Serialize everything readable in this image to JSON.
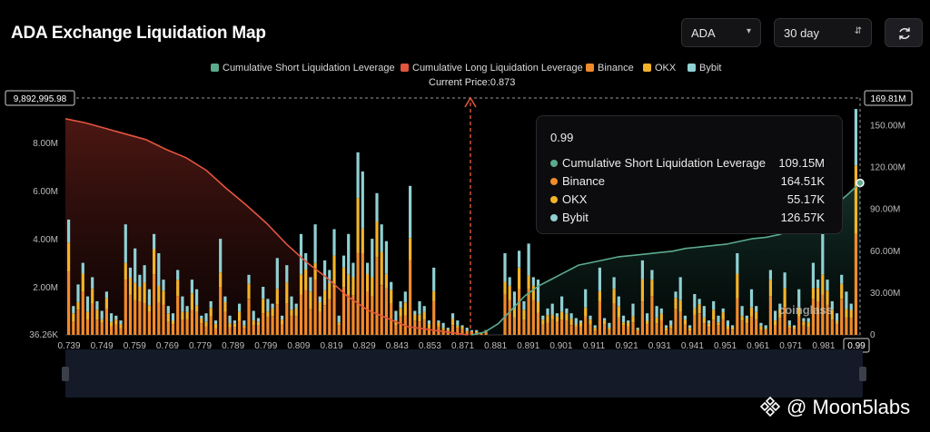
{
  "header": {
    "title": "ADA Exchange Liquidation Map",
    "symbol_select": "ADA",
    "period_select": "30 day",
    "refresh_icon": "refresh-icon"
  },
  "legend": [
    {
      "label": "Cumulative Short Liquidation Leverage",
      "color": "#5bab8e"
    },
    {
      "label": "Cumulative Long Liquidation Leverage",
      "color": "#e2553e"
    },
    {
      "label": "Binance",
      "color": "#f08a2b"
    },
    {
      "label": "OKX",
      "color": "#f2b32a"
    },
    {
      "label": "Bybit",
      "color": "#8fd0d3"
    }
  ],
  "current_price_label": "Current Price:0.873",
  "tooltip": {
    "title": "0.99",
    "rows": [
      {
        "label": "Cumulative Short Liquidation Leverage",
        "value": "109.15M",
        "color": "#5bab8e"
      },
      {
        "label": "Binance",
        "value": "164.51K",
        "color": "#f08a2b"
      },
      {
        "label": "OKX",
        "value": "55.17K",
        "color": "#f2b32a"
      },
      {
        "label": "Bybit",
        "value": "126.57K",
        "color": "#8fd0d3"
      }
    ]
  },
  "watermark": "@ Moon5labs",
  "brand": "coinglass",
  "chart_data": {
    "type": "bar",
    "x_ticks": [
      "0.739",
      "0.749",
      "0.759",
      "0.769",
      "0.779",
      "0.789",
      "0.799",
      "0.809",
      "0.819",
      "0.829",
      "0.843",
      "0.853",
      "0.871",
      "0.881",
      "0.891",
      "0.901",
      "0.911",
      "0.921",
      "0.931",
      "0.941",
      "0.951",
      "0.961",
      "0.971",
      "0.981",
      "0.99"
    ],
    "left_axis": {
      "ticks": [
        "36.26K",
        "2.00M",
        "4.00M",
        "6.00M",
        "8.00M"
      ],
      "min": 36260,
      "max": 9892995.98,
      "max_label": "9,892,995.98"
    },
    "right_axis": {
      "ticks": [
        "0",
        "30.00M",
        "60.00M",
        "90.00M",
        "120.00M",
        "150.00M"
      ],
      "min": 0,
      "max": 169810000,
      "max_label": "169.81M"
    },
    "current_price": 0.873,
    "bar_series": [
      {
        "name": "Binance",
        "color": "#f08a2b"
      },
      {
        "name": "OKX",
        "color": "#f2b32a"
      },
      {
        "name": "Bybit",
        "color": "#8fd0d3"
      }
    ],
    "bars_total_M": [
      4.8,
      1.2,
      2.1,
      3.0,
      1.6,
      2.4,
      1.4,
      1.0,
      1.8,
      0.9,
      0.8,
      0.6,
      4.6,
      2.8,
      3.6,
      2.5,
      2.9,
      1.9,
      4.2,
      3.4,
      2.3,
      1.2,
      0.9,
      2.7,
      1.6,
      1.2,
      2.3,
      1.9,
      0.8,
      0.9,
      1.4,
      0.6,
      4.0,
      1.6,
      0.8,
      0.6,
      1.3,
      0.6,
      2.5,
      1.0,
      0.7,
      2.0,
      1.5,
      1.3,
      3.2,
      0.8,
      2.9,
      1.6,
      1.3,
      4.2,
      3.4,
      2.4,
      4.6,
      1.6,
      3.1,
      2.7,
      4.4,
      0.8,
      3.3,
      4.2,
      3.0,
      7.6,
      6.8,
      3.0,
      4.0,
      5.9,
      4.6,
      3.9,
      2.2,
      1.0,
      1.4,
      1.8,
      6.2,
      1.0,
      1.4,
      1.2,
      0.6,
      2.8,
      0.6,
      0.5,
      0.3,
      0.9,
      0.6,
      0.4,
      0.3,
      0.2,
      0.2,
      0.1,
      0.2,
      0.0,
      0.0,
      0.0,
      3.4,
      2.4,
      1.8,
      3.5,
      1.4,
      3.8,
      2.4,
      2.3,
      0.8,
      1.1,
      1.3,
      0.9,
      1.6,
      1.1,
      0.9,
      0.7,
      0.6,
      1.9,
      0.8,
      0.4,
      2.8,
      0.7,
      0.5,
      2.4,
      1.6,
      0.8,
      0.6,
      1.3,
      0.3,
      3.1,
      0.9,
      2.7,
      1.2,
      1.1,
      0.4,
      0.6,
      1.8,
      2.4,
      0.8,
      0.4,
      1.7,
      1.5,
      1.2,
      0.6,
      1.4,
      0.8,
      1.1,
      0.6,
      0.4,
      3.4,
      1.2,
      0.8,
      1.9,
      1.2,
      0.5,
      0.4,
      2.7,
      1.0,
      1.3,
      2.6,
      0.6,
      0.4,
      1.9,
      0.7,
      0.7,
      3.0,
      2.3,
      4.2,
      2.3,
      1.4,
      0.9,
      2.5,
      1.8,
      1.3,
      9.4
    ],
    "cum_long_M": [
      155,
      152,
      148,
      144,
      140,
      133,
      127,
      118,
      105,
      93,
      80,
      65,
      52,
      41,
      28,
      18,
      12,
      6,
      4,
      2,
      0
    ],
    "cum_short_M": [
      0,
      2,
      8,
      18,
      28,
      35,
      40,
      45,
      50,
      52,
      54,
      56,
      57,
      58,
      59,
      60,
      62,
      63,
      64,
      65,
      67,
      69,
      70,
      72,
      76,
      80,
      86,
      92,
      100,
      109
    ]
  }
}
